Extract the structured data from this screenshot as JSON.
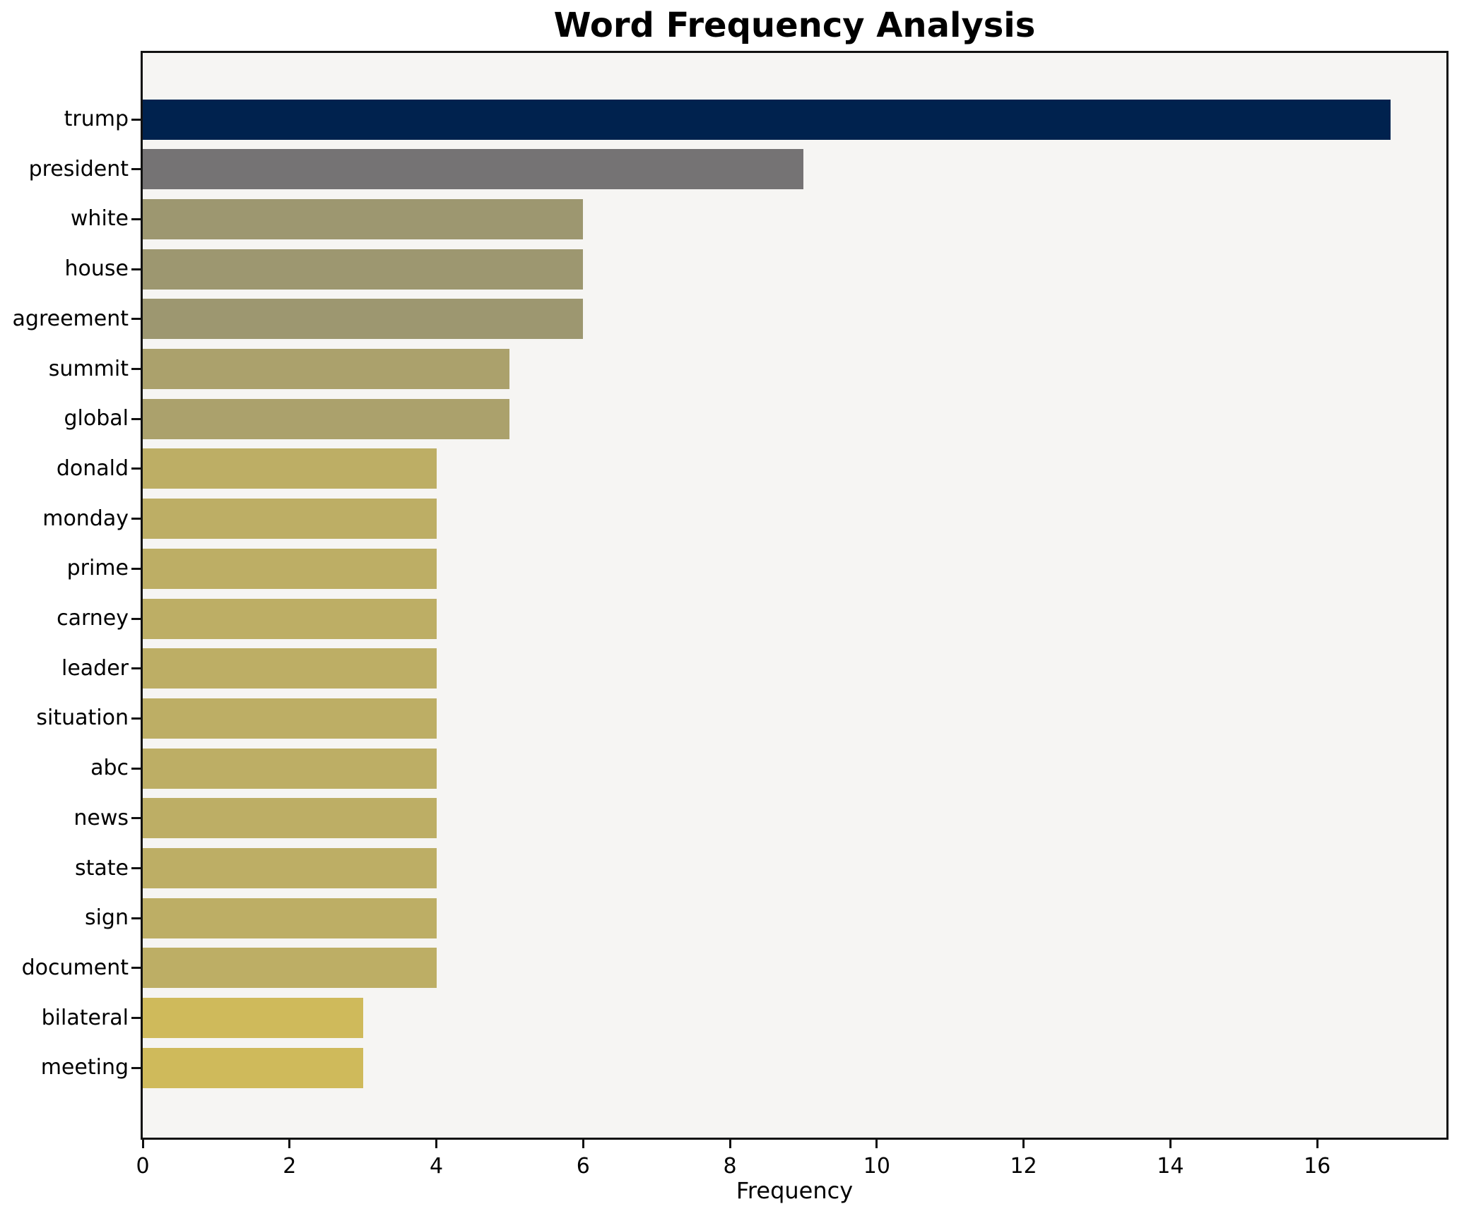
{
  "chart_data": {
    "type": "bar",
    "orientation": "horizontal",
    "title": "Word Frequency Analysis",
    "xlabel": "Frequency",
    "ylabel": "",
    "categories": [
      "trump",
      "president",
      "white",
      "house",
      "agreement",
      "summit",
      "global",
      "donald",
      "monday",
      "prime",
      "carney",
      "leader",
      "situation",
      "abc",
      "news",
      "state",
      "sign",
      "document",
      "bilateral",
      "meeting"
    ],
    "values": [
      17,
      9,
      6,
      6,
      6,
      5,
      5,
      4,
      4,
      4,
      4,
      4,
      4,
      4,
      4,
      4,
      4,
      4,
      3,
      3
    ],
    "bar_colors": [
      "#00224e",
      "#757374",
      "#9d9770",
      "#9d9770",
      "#9d9770",
      "#aba16c",
      "#aba16c",
      "#bdae65",
      "#bdae65",
      "#bdae65",
      "#bdae65",
      "#bdae65",
      "#bdae65",
      "#bdae65",
      "#bdae65",
      "#bdae65",
      "#bdae65",
      "#bdae65",
      "#cfba5b",
      "#cfba5b"
    ],
    "x_ticks": [
      0,
      2,
      4,
      6,
      8,
      10,
      12,
      14,
      16
    ],
    "xlim": [
      0,
      17.76
    ],
    "grid": false,
    "legend": "none",
    "plot_background": "#f6f5f3",
    "figure_background": "#ffffff",
    "spine_color": "#111111",
    "title_color": "#000000",
    "tick_label_color": "#000000"
  }
}
